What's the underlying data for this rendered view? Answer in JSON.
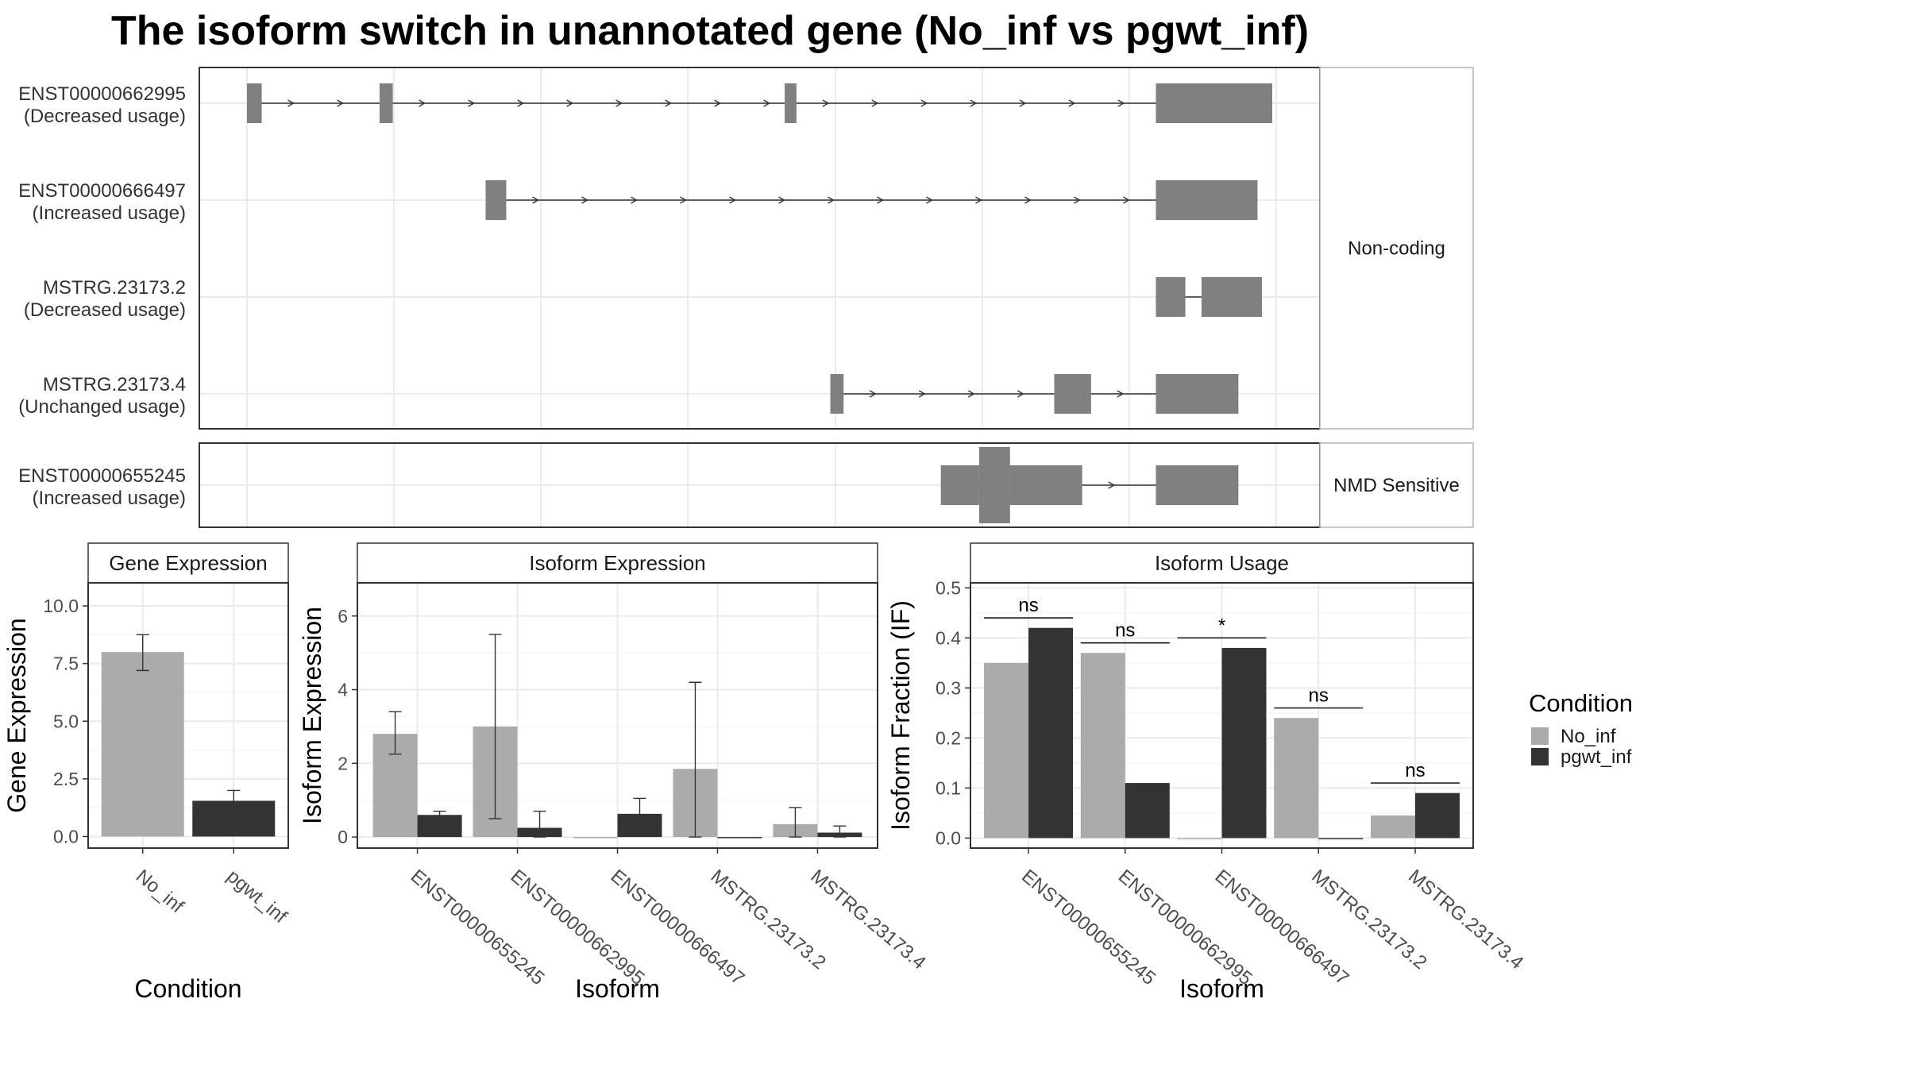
{
  "title": "The isoform switch in unannotated gene (No_inf vs pgwt_inf)",
  "colors": {
    "No_inf": "#ababab",
    "pgwt_inf": "#333333",
    "exon": "#808080"
  },
  "chart_data": [
    {
      "type": "gene-structure",
      "groups": [
        {
          "label": "Non-coding",
          "transcripts": [
            {
              "name": "ENST00000662995",
              "usage": "(Decreased usage)",
              "exons": [
                [
                  0,
                  1.0
                ],
                [
                  9.0,
                  9.9
                ],
                [
                  36.5,
                  37.3
                ],
                [
                  61.7,
                  69.6
                ]
              ]
            },
            {
              "name": "ENST00000666497",
              "usage": "(Increased usage)",
              "exons": [
                [
                  16.2,
                  17.6
                ],
                [
                  61.7,
                  68.6
                ]
              ]
            },
            {
              "name": "MSTRG.23173.2",
              "usage": "(Decreased usage)",
              "exons": [
                [
                  61.7,
                  63.7
                ],
                [
                  64.8,
                  68.9
                ]
              ]
            },
            {
              "name": "MSTRG.23173.4",
              "usage": "(Unchanged usage)",
              "exons": [
                [
                  39.6,
                  40.5
                ],
                [
                  54.8,
                  57.3
                ],
                [
                  61.7,
                  67.3
                ]
              ]
            }
          ]
        },
        {
          "label": "NMD Sensitive",
          "transcripts": [
            {
              "name": "ENST00000655245",
              "usage": "(Increased usage)",
              "exons": [
                [
                  47.1,
                  49.7
                ],
                [
                  49.7,
                  51.8
                ],
                [
                  51.8,
                  56.7
                ],
                [
                  56.7,
                  56.7
                ],
                [
                  61.7,
                  67.3
                ]
              ],
              "cds": [
                49.7,
                51.8
              ]
            }
          ]
        }
      ]
    },
    {
      "type": "bar",
      "title": "Gene Expression",
      "xlabel": "Condition",
      "ylabel": "Gene Expression",
      "categories": [
        "No_inf",
        "pgwt_inf"
      ],
      "values": [
        8.0,
        1.55
      ],
      "errors": [
        [
          7.2,
          8.75
        ],
        [
          1.2,
          2.0
        ]
      ],
      "ylim": [
        -0.5,
        11.0
      ],
      "yticks": [
        "0.0",
        "2.5",
        "5.0",
        "7.5",
        "10.0"
      ]
    },
    {
      "type": "bar",
      "title": "Isoform Expression",
      "xlabel": "Isoform",
      "ylabel": "Isoform Expression",
      "categories": [
        "ENST00000655245",
        "ENST00000662995",
        "ENST00000666497",
        "MSTRG.23173.2",
        "MSTRG.23173.4"
      ],
      "series": [
        {
          "name": "No_inf",
          "values": [
            2.8,
            3.0,
            0.0,
            1.85,
            0.35
          ],
          "errors": [
            [
              2.25,
              3.4
            ],
            [
              0.5,
              5.5
            ],
            null,
            [
              0.0,
              4.2
            ],
            [
              0.0,
              0.8
            ]
          ]
        },
        {
          "name": "pgwt_inf",
          "values": [
            0.6,
            0.25,
            0.63,
            0.0,
            0.12
          ],
          "errors": [
            [
              0.5,
              0.7
            ],
            [
              0.0,
              0.7
            ],
            [
              0.2,
              1.05
            ],
            null,
            [
              0.0,
              0.3
            ]
          ]
        }
      ],
      "ylim": [
        -0.3,
        6.9
      ],
      "yticks": [
        "0",
        "2",
        "4",
        "6"
      ]
    },
    {
      "type": "bar",
      "title": "Isoform Usage",
      "xlabel": "Isoform",
      "ylabel": "Isoform Fraction (IF)",
      "categories": [
        "ENST00000655245",
        "ENST00000662995",
        "ENST00000666497",
        "MSTRG.23173.2",
        "MSTRG.23173.4"
      ],
      "series": [
        {
          "name": "No_inf",
          "values": [
            0.35,
            0.37,
            0.0,
            0.24,
            0.045
          ]
        },
        {
          "name": "pgwt_inf",
          "values": [
            0.42,
            0.11,
            0.38,
            0.0,
            0.09
          ]
        }
      ],
      "significance": [
        {
          "label": "ns",
          "y": 0.44
        },
        {
          "label": "ns",
          "y": 0.39
        },
        {
          "label": "*",
          "y": 0.4
        },
        {
          "label": "ns",
          "y": 0.26
        },
        {
          "label": "ns",
          "y": 0.11
        }
      ],
      "ylim": [
        -0.02,
        0.51
      ],
      "yticks": [
        "0.0",
        "0.1",
        "0.2",
        "0.3",
        "0.4",
        "0.5"
      ]
    }
  ],
  "legend": {
    "title": "Condition",
    "items": [
      "No_inf",
      "pgwt_inf"
    ],
    "position": "right"
  }
}
